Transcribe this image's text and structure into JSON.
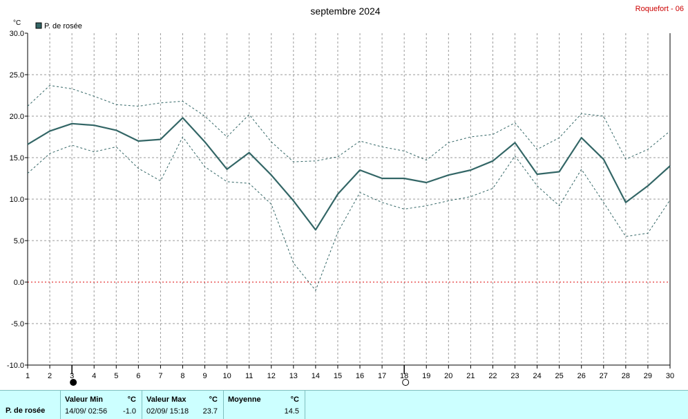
{
  "header": {
    "title": "septembre 2024",
    "station": "Roquefort - 06"
  },
  "chart_data": {
    "type": "line",
    "unit": "°C",
    "legend": "P. de rosée",
    "x": [
      1,
      2,
      3,
      4,
      5,
      6,
      7,
      8,
      9,
      10,
      11,
      12,
      13,
      14,
      15,
      16,
      17,
      18,
      19,
      20,
      21,
      22,
      23,
      24,
      25,
      26,
      27,
      28,
      29,
      30
    ],
    "ylim": [
      -10,
      30
    ],
    "yticks": [
      "30.0",
      "25.0",
      "20.0",
      "15.0",
      "10.0",
      "5.0",
      "0.0",
      "-5.0",
      "-10.0"
    ],
    "grid": true,
    "zero_line": true,
    "moon_markers": [
      {
        "day": 3,
        "phase": "new-moon"
      },
      {
        "day": 18,
        "phase": "full-moon"
      }
    ],
    "series": [
      {
        "name": "P. de rosée",
        "role": "mean",
        "color": "#336666",
        "values": [
          16.6,
          18.2,
          19.1,
          18.9,
          18.3,
          17.0,
          17.2,
          19.8,
          16.9,
          13.6,
          15.6,
          12.9,
          9.8,
          6.3,
          10.6,
          13.5,
          12.5,
          12.5,
          12.0,
          12.9,
          13.5,
          14.6,
          16.8,
          13.0,
          13.3,
          17.4,
          14.8,
          9.6,
          11.6,
          14.0
        ]
      },
      {
        "role": "max",
        "color": "#336666",
        "values": [
          21.2,
          23.7,
          23.3,
          22.4,
          21.4,
          21.2,
          21.6,
          21.8,
          20.0,
          17.5,
          20.2,
          16.9,
          14.5,
          14.6,
          15.1,
          17.0,
          16.3,
          15.8,
          14.7,
          16.8,
          17.5,
          17.8,
          19.2,
          16.0,
          17.4,
          20.3,
          20.0,
          14.8,
          16.0,
          18.2
        ]
      },
      {
        "role": "min",
        "color": "#336666",
        "values": [
          13.1,
          15.5,
          16.5,
          15.7,
          16.3,
          13.7,
          12.2,
          17.5,
          13.9,
          12.1,
          11.9,
          9.4,
          2.3,
          -1.0,
          6.0,
          10.8,
          9.6,
          8.8,
          9.2,
          9.8,
          10.3,
          11.3,
          15.2,
          11.6,
          9.2,
          13.6,
          9.6,
          5.5,
          5.9,
          9.9
        ]
      }
    ]
  },
  "stats": {
    "series_label": "P. de rosée",
    "min_label": "Valeur Min",
    "min_unit": "°C",
    "min_date": "14/09/  02:56",
    "min_value": "-1.0",
    "max_label": "Valeur Max",
    "max_unit": "°C",
    "max_date": "02/09/  15:18",
    "max_value": "23.7",
    "mean_label": "Moyenne",
    "mean_unit": "°C",
    "mean_value": "14.5"
  }
}
